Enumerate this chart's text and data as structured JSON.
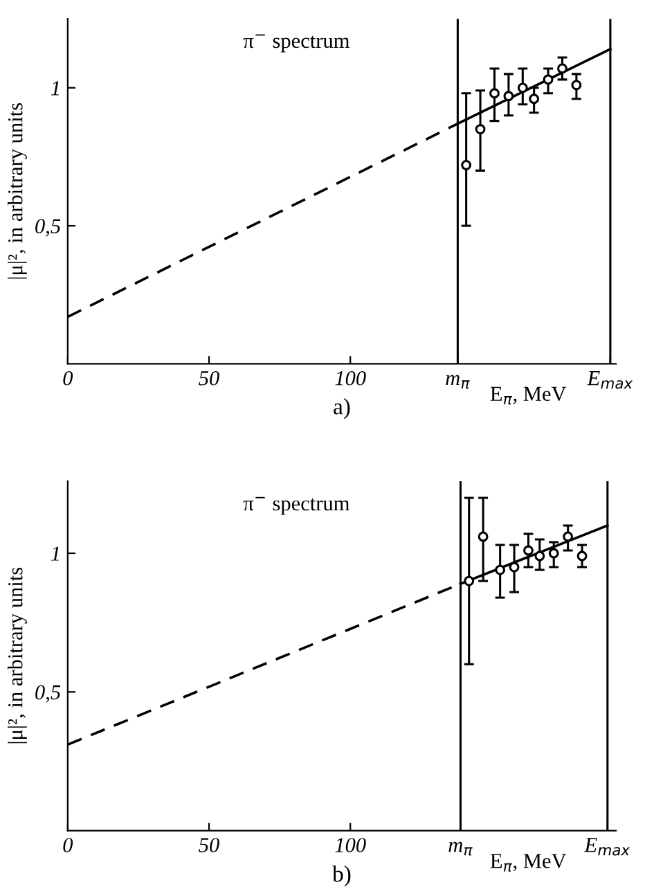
{
  "chart_data": [
    {
      "type": "scatter",
      "title": "π$^{−}$ spectrum",
      "xlabel": "E$_{π}$, MeV",
      "ylabel": "|μ|², in arbitrary units",
      "annotations": [
        "a)"
      ],
      "xlim": [
        0,
        194
      ],
      "ylim": [
        0,
        1.25
      ],
      "xticks": [
        0,
        50,
        100,
        {
          "value": 138,
          "label": "m$_{π}$"
        },
        {
          "value": 192,
          "label": "E$_{max}$"
        }
      ],
      "yticks": [
        {
          "value": 0.5,
          "label": "0,5"
        },
        1
      ],
      "ref_lines": [
        {
          "axis": "x",
          "value": 138,
          "color": "#000000"
        },
        {
          "axis": "x",
          "value": 192,
          "color": "#000000"
        }
      ],
      "grid": false,
      "legend": false,
      "series": [
        {
          "type": "line",
          "line_style": "dashed",
          "color": "#000000",
          "x": [
            0,
            138
          ],
          "values": [
            0.17,
            0.87
          ]
        },
        {
          "type": "line",
          "line_style": "solid",
          "color": "#000000",
          "x": [
            138,
            192
          ],
          "values": [
            0.87,
            1.14
          ]
        },
        {
          "marker": "circle",
          "color": "#000000",
          "x": [
            141,
            146,
            151,
            156,
            161,
            165,
            170,
            175,
            180
          ],
          "values": [
            0.72,
            0.85,
            0.98,
            0.97,
            1.0,
            0.96,
            1.03,
            1.07,
            1.01
          ],
          "errors": [
            [
              0.5,
              0.98
            ],
            [
              0.7,
              0.99
            ],
            [
              0.88,
              1.07
            ],
            [
              0.9,
              1.05
            ],
            [
              0.94,
              1.07
            ],
            [
              0.91,
              1.0
            ],
            [
              0.98,
              1.07
            ],
            [
              1.03,
              1.11
            ],
            [
              0.96,
              1.05
            ]
          ]
        }
      ]
    },
    {
      "type": "scatter",
      "title": "π$^{−}$ spectrum",
      "xlabel": "E$_{π}$, MeV",
      "ylabel": "|μ|², in arbitrary units",
      "annotations": [
        "b)"
      ],
      "xlim": [
        0,
        194
      ],
      "ylim": [
        0,
        1.26
      ],
      "xticks": [
        0,
        50,
        100,
        {
          "value": 139,
          "label": "m$_{π}$"
        },
        {
          "value": 191,
          "label": "E$_{max}$"
        }
      ],
      "yticks": [
        {
          "value": 0.5,
          "label": "0,5"
        },
        1
      ],
      "ref_lines": [
        {
          "axis": "x",
          "value": 139,
          "color": "#000000"
        },
        {
          "axis": "x",
          "value": 191,
          "color": "#000000"
        }
      ],
      "grid": false,
      "legend": false,
      "series": [
        {
          "type": "line",
          "line_style": "dashed",
          "color": "#000000",
          "x": [
            0,
            139
          ],
          "values": [
            0.31,
            0.89
          ]
        },
        {
          "type": "line",
          "line_style": "solid",
          "color": "#000000",
          "x": [
            139,
            191
          ],
          "values": [
            0.89,
            1.1
          ]
        },
        {
          "marker": "circle",
          "color": "#000000",
          "x": [
            142,
            147,
            153,
            158,
            163,
            167,
            172,
            177,
            182
          ],
          "values": [
            0.9,
            1.06,
            0.94,
            0.95,
            1.01,
            0.99,
            1.0,
            1.06,
            0.99
          ],
          "errors": [
            [
              0.6,
              1.2
            ],
            [
              0.9,
              1.2
            ],
            [
              0.84,
              1.03
            ],
            [
              0.86,
              1.03
            ],
            [
              0.95,
              1.07
            ],
            [
              0.94,
              1.05
            ],
            [
              0.95,
              1.04
            ],
            [
              1.01,
              1.1
            ],
            [
              0.95,
              1.03
            ]
          ]
        }
      ]
    }
  ]
}
